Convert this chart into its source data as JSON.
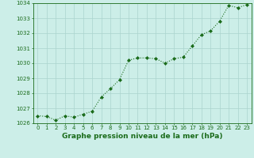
{
  "x": [
    0,
    1,
    2,
    3,
    4,
    5,
    6,
    7,
    8,
    9,
    10,
    11,
    12,
    13,
    14,
    15,
    16,
    17,
    18,
    19,
    20,
    21,
    22,
    23
  ],
  "y": [
    1026.5,
    1026.45,
    1026.2,
    1026.5,
    1026.4,
    1026.6,
    1026.8,
    1027.75,
    1028.3,
    1028.9,
    1030.2,
    1030.35,
    1030.35,
    1030.3,
    1030.0,
    1030.3,
    1030.4,
    1031.15,
    1031.9,
    1032.15,
    1032.8,
    1033.85,
    1033.7,
    1033.9
  ],
  "ylim": [
    1026,
    1034
  ],
  "yticks": [
    1026,
    1027,
    1028,
    1029,
    1030,
    1031,
    1032,
    1033,
    1034
  ],
  "xticks": [
    0,
    1,
    2,
    3,
    4,
    5,
    6,
    7,
    8,
    9,
    10,
    11,
    12,
    13,
    14,
    15,
    16,
    17,
    18,
    19,
    20,
    21,
    22,
    23
  ],
  "line_color": "#1a6b1a",
  "marker": "D",
  "marker_size": 2.0,
  "line_width": 0.8,
  "bg_color": "#cceee8",
  "grid_color": "#aad4ce",
  "xlabel": "Graphe pression niveau de la mer (hPa)",
  "xlabel_color": "#1a6b1a",
  "xlabel_fontsize": 6.5,
  "tick_color": "#1a6b1a",
  "tick_fontsize": 5.0,
  "spine_color": "#1a6b1a"
}
